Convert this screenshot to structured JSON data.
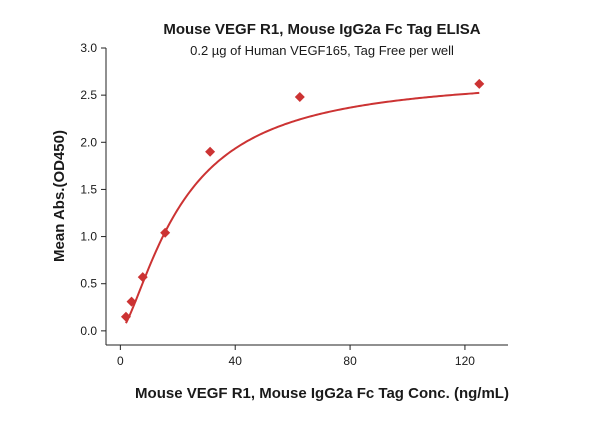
{
  "chart_data": {
    "type": "scatter",
    "title": "Mouse VEGF R1, Mouse IgG2a Fc Tag ELISA",
    "subtitle": "0.2 µg of Human VEGF165, Tag Free per well",
    "xlabel": "Mouse VEGF R1, Mouse IgG2a Fc Tag Conc. (ng/mL)",
    "ylabel": "Mean Abs.(OD450)",
    "xlim": [
      -5,
      135
    ],
    "ylim": [
      -0.15,
      3.0
    ],
    "x_ticks": [
      0,
      40,
      80,
      120
    ],
    "y_ticks": [
      0.0,
      0.5,
      1.0,
      1.5,
      2.0,
      2.5,
      3.0
    ],
    "x_tick_labels": [
      "0",
      "40",
      "80",
      "120"
    ],
    "y_tick_labels": [
      "0.0",
      "0.5",
      "1.0",
      "1.5",
      "2.0",
      "2.5",
      "3.0"
    ],
    "grid": false,
    "marker": "diamond",
    "color": "#cc3333",
    "series": [
      {
        "x": [
          1.95,
          3.9,
          7.8,
          15.6,
          31.25,
          62.5,
          125
        ],
        "y": [
          0.15,
          0.31,
          0.57,
          1.04,
          1.9,
          2.48,
          2.62
        ]
      }
    ],
    "fit": {
      "type": "4PL",
      "bottom": 0.0,
      "top": 2.72,
      "ec50": 21.5,
      "hill": 1.45
    }
  }
}
